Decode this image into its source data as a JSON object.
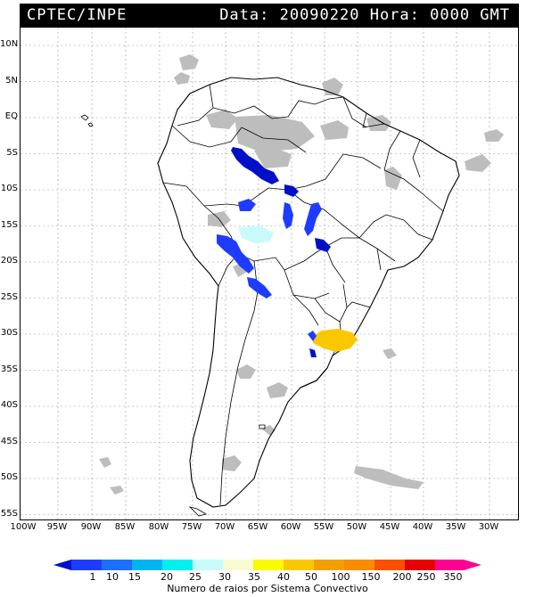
{
  "header": {
    "left": "CPTEC/INPE",
    "right": "Data: 20090220 Hora: 0000 GMT"
  },
  "lat_labels": [
    "10N",
    "5N",
    "EQ",
    "5S",
    "10S",
    "15S",
    "20S",
    "25S",
    "30S",
    "35S",
    "40S",
    "45S",
    "50S",
    "55S"
  ],
  "lon_labels": [
    "100W",
    "95W",
    "90W",
    "85W",
    "80W",
    "75W",
    "70W",
    "65W",
    "60W",
    "55W",
    "50W",
    "45W",
    "40W",
    "35W",
    "30W"
  ],
  "colorbar": {
    "labels": [
      "1",
      "10",
      "15",
      "20",
      "25",
      "30",
      "35",
      "40",
      "50",
      "100",
      "150",
      "200",
      "250",
      "350"
    ],
    "colors": [
      "#0010c8",
      "#1e3cff",
      "#1e6eff",
      "#00b4f0",
      "#00f0f0",
      "#c8fafa",
      "#fafad2",
      "#fafa00",
      "#fac800",
      "#f0a000",
      "#fa8c00",
      "#fa5000",
      "#e60000",
      "#ff0090"
    ],
    "title": "Numero de raios por Sistema Convectivo"
  }
}
